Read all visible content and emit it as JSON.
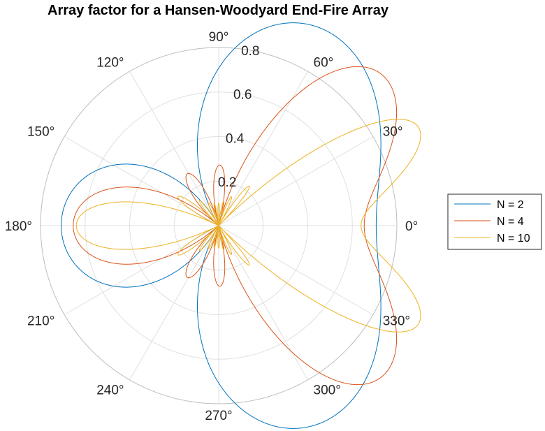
{
  "chart_data": {
    "type": "polar-line",
    "title": "Array factor for a Hansen-Woodyard End-Fire Array",
    "theta_ticks": [
      0,
      30,
      60,
      90,
      120,
      150,
      180,
      210,
      240,
      270,
      300,
      330
    ],
    "theta_tick_labels": [
      "0°",
      "30°",
      "60°",
      "90°",
      "120°",
      "150°",
      "180°",
      "210°",
      "240°",
      "270°",
      "300°",
      "330°"
    ],
    "r_ticks": [
      0.2,
      0.4,
      0.6,
      0.8
    ],
    "r_tick_labels": [
      "0.2",
      "0.4",
      "0.6",
      "0.8"
    ],
    "rlim": [
      0,
      0.8
    ],
    "r_label_angle_deg": 80,
    "grid": true,
    "legend_position": "right",
    "series": [
      {
        "name": "N = 2",
        "N": 2,
        "color": "#0072BD"
      },
      {
        "name": "N = 4",
        "N": 4,
        "color": "#D95319"
      },
      {
        "name": "N = 10",
        "N": 10,
        "color": "#EDB120"
      }
    ]
  }
}
